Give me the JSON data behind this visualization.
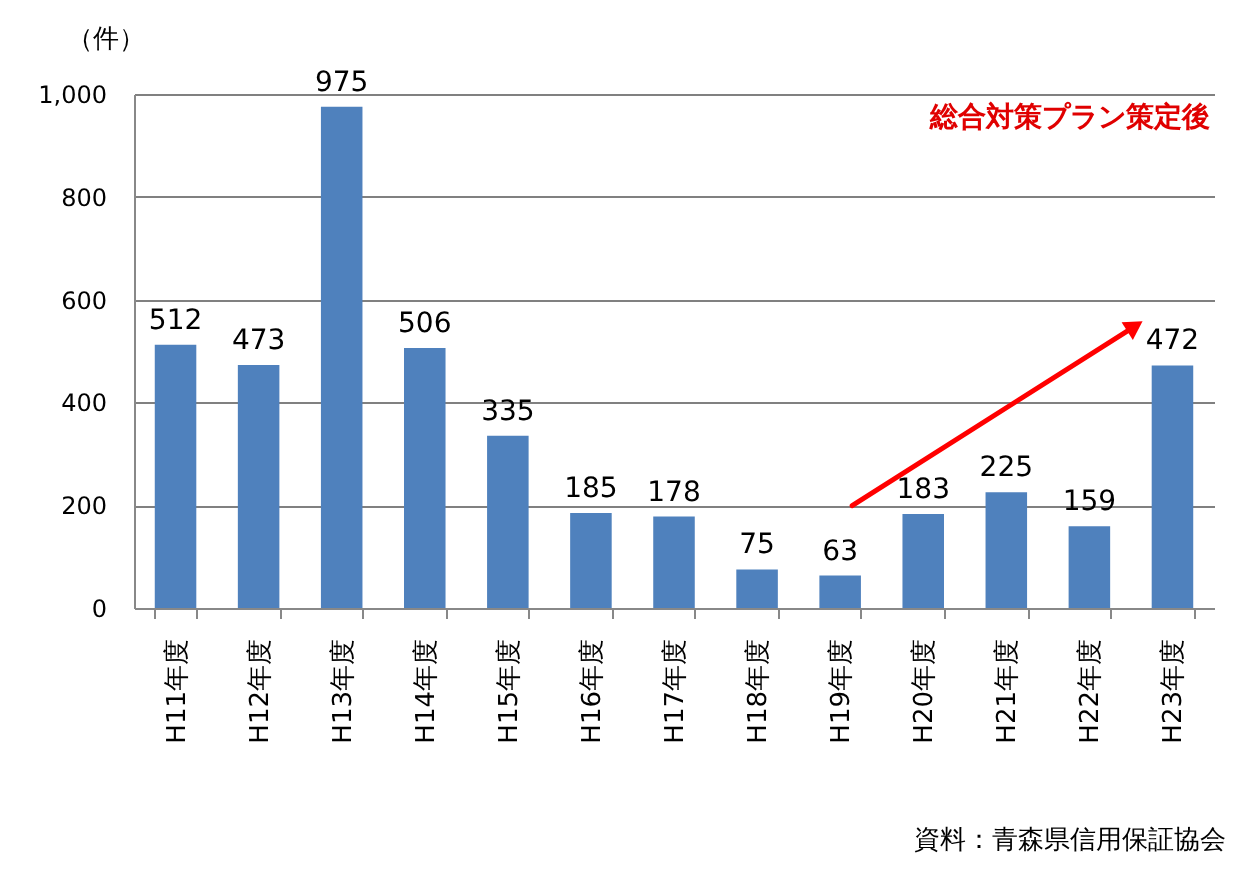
{
  "chart_data": {
    "type": "bar",
    "ylabel": "（件）",
    "categories": [
      "H11年度",
      "H12年度",
      "H13年度",
      "H14年度",
      "H15年度",
      "H16年度",
      "H17年度",
      "H18年度",
      "H19年度",
      "H20年度",
      "H21年度",
      "H22年度",
      "H23年度"
    ],
    "values": [
      512,
      473,
      975,
      506,
      335,
      185,
      178,
      75,
      63,
      183,
      225,
      159,
      472
    ],
    "color": "#4f81bd",
    "ylim": [
      0,
      1000
    ],
    "yticks": [
      0,
      200,
      400,
      600,
      800,
      {
        "value": 1000,
        "label": "1,000"
      }
    ],
    "grid": "y",
    "data_labels": true,
    "annotations": [
      "総合対策プラン策定後",
      "資料：青森県信用保証協会"
    ]
  }
}
